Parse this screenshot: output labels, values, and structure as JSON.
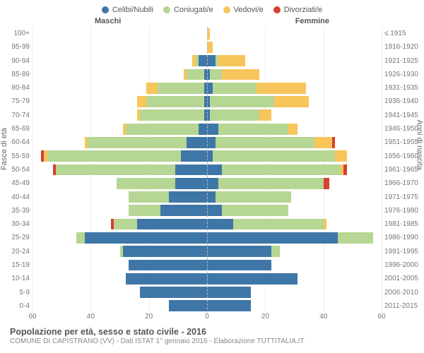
{
  "type": "population-pyramid",
  "title": "Popolazione per età, sesso e stato civile - 2016",
  "subtitle": "COMUNE DI CAPISTRANO (VV) - Dati ISTAT 1° gennaio 2016 - Elaborazione TUTTITALIA.IT",
  "legend": [
    {
      "label": "Celibi/Nubili",
      "color": "#3f76a8"
    },
    {
      "label": "Coniugati/e",
      "color": "#b6d693"
    },
    {
      "label": "Vedovi/e",
      "color": "#f8c55b"
    },
    {
      "label": "Divorziati/e",
      "color": "#d8402f"
    }
  ],
  "headers": {
    "male": "Maschi",
    "female": "Femmine"
  },
  "axis_titles": {
    "left": "Fasce di età",
    "right": "Anni di nascita"
  },
  "xmax": 60,
  "xticks": [
    60,
    40,
    20,
    0,
    20,
    40,
    60
  ],
  "colors": {
    "single": "#3f76a8",
    "married": "#b6d693",
    "widowed": "#f8c55b",
    "divorced": "#d8402f",
    "grid": "#eeeeee",
    "centerline": "#bbbbbb",
    "text": "#666666",
    "background": "#ffffff"
  },
  "rows": [
    {
      "age": "100+",
      "birth": "≤ 1915",
      "m": {
        "s": 0,
        "c": 0,
        "w": 0,
        "d": 0
      },
      "f": {
        "s": 0,
        "c": 0,
        "w": 1,
        "d": 0
      }
    },
    {
      "age": "95-99",
      "birth": "1916-1920",
      "m": {
        "s": 0,
        "c": 0,
        "w": 0,
        "d": 0
      },
      "f": {
        "s": 0,
        "c": 0,
        "w": 2,
        "d": 0
      }
    },
    {
      "age": "90-94",
      "birth": "1921-1925",
      "m": {
        "s": 3,
        "c": 1,
        "w": 1,
        "d": 0
      },
      "f": {
        "s": 3,
        "c": 1,
        "w": 9,
        "d": 0
      }
    },
    {
      "age": "85-89",
      "birth": "1926-1930",
      "m": {
        "s": 1,
        "c": 6,
        "w": 1,
        "d": 0
      },
      "f": {
        "s": 1,
        "c": 4,
        "w": 13,
        "d": 0
      }
    },
    {
      "age": "80-84",
      "birth": "1931-1935",
      "m": {
        "s": 1,
        "c": 16,
        "w": 4,
        "d": 0
      },
      "f": {
        "s": 2,
        "c": 15,
        "w": 17,
        "d": 0
      }
    },
    {
      "age": "75-79",
      "birth": "1936-1940",
      "m": {
        "s": 1,
        "c": 20,
        "w": 3,
        "d": 0
      },
      "f": {
        "s": 1,
        "c": 22,
        "w": 12,
        "d": 0
      }
    },
    {
      "age": "70-74",
      "birth": "1941-1945",
      "m": {
        "s": 1,
        "c": 22,
        "w": 1,
        "d": 0
      },
      "f": {
        "s": 1,
        "c": 17,
        "w": 4,
        "d": 0
      }
    },
    {
      "age": "65-69",
      "birth": "1946-1950",
      "m": {
        "s": 3,
        "c": 25,
        "w": 1,
        "d": 0
      },
      "f": {
        "s": 4,
        "c": 24,
        "w": 3,
        "d": 0
      }
    },
    {
      "age": "60-64",
      "birth": "1951-1955",
      "m": {
        "s": 7,
        "c": 34,
        "w": 1,
        "d": 0
      },
      "f": {
        "s": 3,
        "c": 34,
        "w": 6,
        "d": 1
      }
    },
    {
      "age": "55-59",
      "birth": "1956-1960",
      "m": {
        "s": 9,
        "c": 46,
        "w": 1,
        "d": 1
      },
      "f": {
        "s": 2,
        "c": 42,
        "w": 4,
        "d": 0
      }
    },
    {
      "age": "50-54",
      "birth": "1961-1965",
      "m": {
        "s": 11,
        "c": 41,
        "w": 0,
        "d": 1
      },
      "f": {
        "s": 5,
        "c": 41,
        "w": 1,
        "d": 1
      }
    },
    {
      "age": "45-49",
      "birth": "1966-1970",
      "m": {
        "s": 11,
        "c": 20,
        "w": 0,
        "d": 0
      },
      "f": {
        "s": 4,
        "c": 36,
        "w": 0,
        "d": 2
      }
    },
    {
      "age": "40-44",
      "birth": "1971-1975",
      "m": {
        "s": 13,
        "c": 14,
        "w": 0,
        "d": 0
      },
      "f": {
        "s": 3,
        "c": 26,
        "w": 0,
        "d": 0
      }
    },
    {
      "age": "35-39",
      "birth": "1976-1980",
      "m": {
        "s": 16,
        "c": 11,
        "w": 0,
        "d": 0
      },
      "f": {
        "s": 5,
        "c": 23,
        "w": 0,
        "d": 0
      }
    },
    {
      "age": "30-34",
      "birth": "1981-1985",
      "m": {
        "s": 24,
        "c": 8,
        "w": 0,
        "d": 1
      },
      "f": {
        "s": 9,
        "c": 31,
        "w": 1,
        "d": 0
      }
    },
    {
      "age": "25-29",
      "birth": "1986-1990",
      "m": {
        "s": 42,
        "c": 3,
        "w": 0,
        "d": 0
      },
      "f": {
        "s": 45,
        "c": 12,
        "w": 0,
        "d": 0
      }
    },
    {
      "age": "20-24",
      "birth": "1991-1995",
      "m": {
        "s": 29,
        "c": 1,
        "w": 0,
        "d": 0
      },
      "f": {
        "s": 22,
        "c": 3,
        "w": 0,
        "d": 0
      }
    },
    {
      "age": "15-19",
      "birth": "1996-2000",
      "m": {
        "s": 27,
        "c": 0,
        "w": 0,
        "d": 0
      },
      "f": {
        "s": 22,
        "c": 0,
        "w": 0,
        "d": 0
      }
    },
    {
      "age": "10-14",
      "birth": "2001-2005",
      "m": {
        "s": 28,
        "c": 0,
        "w": 0,
        "d": 0
      },
      "f": {
        "s": 31,
        "c": 0,
        "w": 0,
        "d": 0
      }
    },
    {
      "age": "5-9",
      "birth": "2006-2010",
      "m": {
        "s": 23,
        "c": 0,
        "w": 0,
        "d": 0
      },
      "f": {
        "s": 15,
        "c": 0,
        "w": 0,
        "d": 0
      }
    },
    {
      "age": "0-4",
      "birth": "2011-2015",
      "m": {
        "s": 13,
        "c": 0,
        "w": 0,
        "d": 0
      },
      "f": {
        "s": 15,
        "c": 0,
        "w": 0,
        "d": 0
      }
    }
  ]
}
